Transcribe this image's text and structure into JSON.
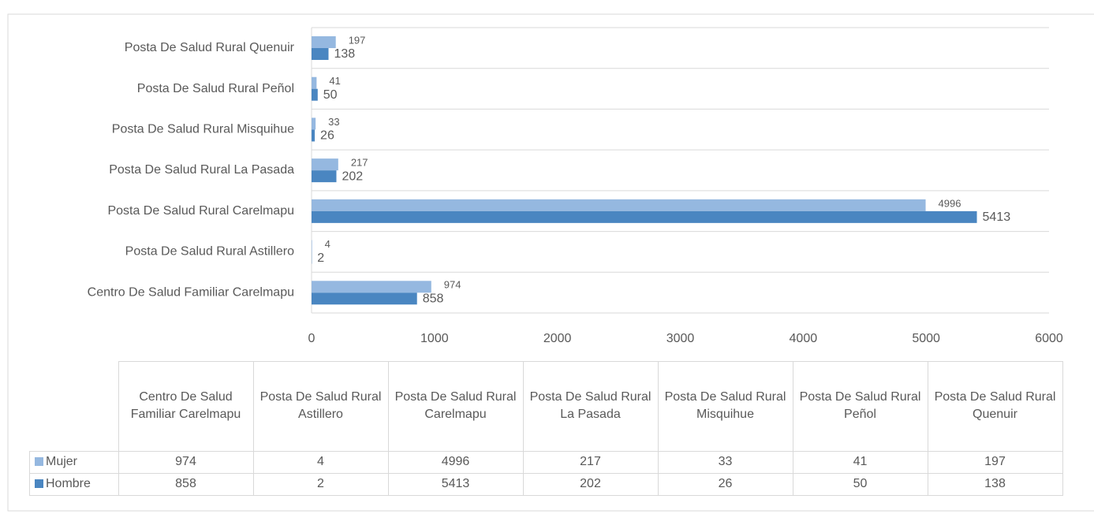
{
  "chart_data": {
    "type": "barh",
    "categories": [
      "Centro De Salud Familiar Carelmapu",
      "Posta De Salud Rural Astillero",
      "Posta De Salud Rural Carelmapu",
      "Posta De Salud Rural La Pasada",
      "Posta De Salud Rural Misquihue",
      "Posta De Salud Rural Peñol",
      "Posta De Salud Rural Quenuir"
    ],
    "series": [
      {
        "name": "Mujer",
        "color": "#95b8e0",
        "values": [
          974,
          4,
          4996,
          217,
          33,
          41,
          197
        ]
      },
      {
        "name": "Hombre",
        "color": "#4a86c1",
        "values": [
          858,
          2,
          5413,
          202,
          26,
          50,
          138
        ]
      }
    ],
    "xlim": [
      0,
      6000
    ],
    "xticks": [
      0,
      1000,
      2000,
      3000,
      4000,
      5000,
      6000
    ],
    "data_table": true
  }
}
